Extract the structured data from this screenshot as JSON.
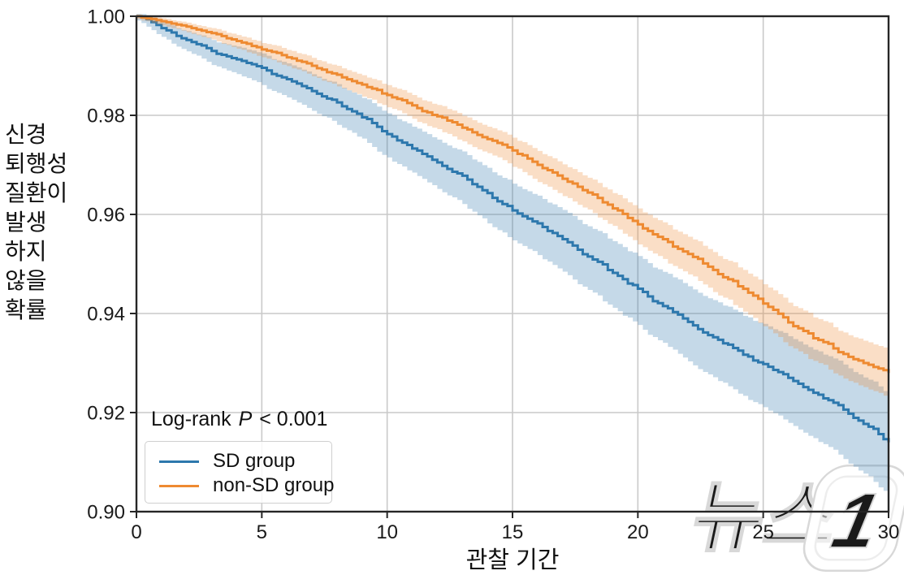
{
  "page": {
    "background": "#ffffff"
  },
  "chart_data": {
    "type": "line",
    "subtype": "kaplan-meier-step-with-ci-bands",
    "title": "",
    "xlabel": "관찰 기간",
    "ylabel": "신경 퇴행성 질환이 발생 하지 않을 확률",
    "ylabel_lines": [
      "신경",
      "퇴행성",
      "질환이",
      "발생",
      "하지",
      "않을",
      "확률"
    ],
    "xlim": [
      0,
      30
    ],
    "ylim": [
      0.9,
      1.0
    ],
    "xticks": [
      0,
      5,
      10,
      15,
      20,
      25,
      30
    ],
    "xtick_labels": [
      "0",
      "5",
      "10",
      "15",
      "20",
      "25",
      "30"
    ],
    "yticks": [
      1.0,
      0.98,
      0.96,
      0.94,
      0.92,
      0.9
    ],
    "ytick_labels": [
      "1.00",
      "0.98",
      "0.96",
      "0.94",
      "0.92",
      "0.90"
    ],
    "grid": true,
    "grid_color": "#c9c9c9",
    "spine_color": "#262626",
    "legend_position": "lower-left",
    "annotation": "Log-rank P < 0.001",
    "x": [
      0,
      1,
      2,
      3,
      4,
      5,
      6,
      7,
      8,
      9,
      10,
      11,
      12,
      13,
      14,
      15,
      16,
      17,
      18,
      19,
      20,
      21,
      22,
      23,
      24,
      25,
      26,
      27,
      28,
      29,
      30
    ],
    "series": [
      {
        "name": "SD group",
        "color": "#2d78ad",
        "band_color": "rgba(45,120,173,0.28)",
        "values": [
          1.0,
          0.9976,
          0.9952,
          0.993,
          0.9913,
          0.9896,
          0.9873,
          0.9849,
          0.9826,
          0.9796,
          0.9762,
          0.9733,
          0.9705,
          0.9678,
          0.9643,
          0.9608,
          0.9582,
          0.955,
          0.9515,
          0.9482,
          0.945,
          0.9415,
          0.9383,
          0.9352,
          0.9325,
          0.9298,
          0.927,
          0.924,
          0.9215,
          0.9177,
          0.914
        ],
        "ci_half_width": [
          0.0005,
          0.0012,
          0.0018,
          0.0022,
          0.0026,
          0.0029,
          0.0032,
          0.0034,
          0.0037,
          0.0039,
          0.0042,
          0.0044,
          0.0046,
          0.0049,
          0.0051,
          0.0054,
          0.0056,
          0.0059,
          0.0061,
          0.0064,
          0.0066,
          0.0069,
          0.0072,
          0.0075,
          0.0078,
          0.0081,
          0.0084,
          0.0087,
          0.009,
          0.0094,
          0.0098
        ]
      },
      {
        "name": "non-SD group",
        "color": "#ee8a31",
        "band_color": "rgba(238,138,49,0.28)",
        "values": [
          1.0,
          0.999,
          0.9979,
          0.9966,
          0.995,
          0.9933,
          0.9917,
          0.99,
          0.9882,
          0.9862,
          0.9841,
          0.982,
          0.9798,
          0.9775,
          0.9752,
          0.9729,
          0.97,
          0.9672,
          0.9644,
          0.9612,
          0.958,
          0.955,
          0.952,
          0.9488,
          0.9455,
          0.942,
          0.9382,
          0.935,
          0.9322,
          0.93,
          0.928
        ],
        "ci_half_width": [
          0.0003,
          0.0006,
          0.0008,
          0.001,
          0.0012,
          0.0013,
          0.0015,
          0.0016,
          0.0018,
          0.0019,
          0.002,
          0.0021,
          0.0023,
          0.0024,
          0.0025,
          0.0026,
          0.0028,
          0.0029,
          0.003,
          0.0031,
          0.0032,
          0.0034,
          0.0035,
          0.0036,
          0.0038,
          0.0039,
          0.004,
          0.0042,
          0.0043,
          0.0045,
          0.0046
        ]
      }
    ]
  },
  "annotation": {
    "prefix": "Log-rank ",
    "p": "P",
    "suffix": " < 0.001"
  },
  "watermark": {
    "text": "뉴스",
    "digit": "1",
    "name": "뉴스1"
  }
}
